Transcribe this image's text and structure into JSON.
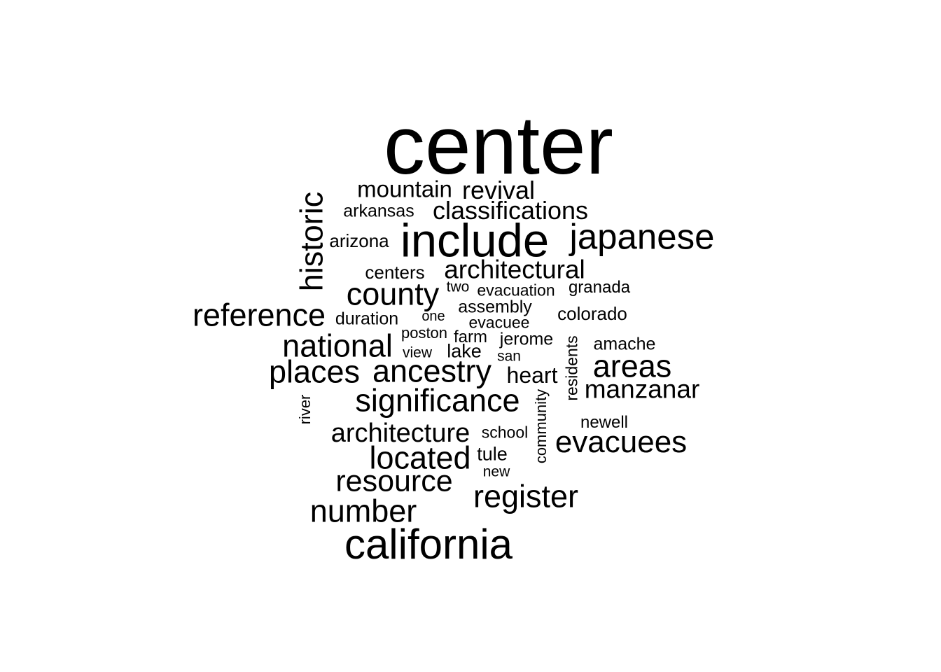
{
  "words": {
    "center": "center",
    "mountain": "mountain",
    "revival": "revival",
    "historic": "historic",
    "arkansas": "arkansas",
    "classifications": "classifications",
    "include": "include",
    "japanese": "japanese",
    "arizona": "arizona",
    "centers": "centers",
    "architectural": "architectural",
    "county": "county",
    "two": "two",
    "evacuation": "evacuation",
    "granada": "granada",
    "reference": "reference",
    "assembly": "assembly",
    "colorado": "colorado",
    "duration": "duration",
    "one": "one",
    "evacuee": "evacuee",
    "poston": "poston",
    "farm": "farm",
    "jerome": "jerome",
    "residents": "residents",
    "amache": "amache",
    "national": "national",
    "view": "view",
    "lake": "lake",
    "san": "san",
    "areas": "areas",
    "places": "places",
    "ancestry": "ancestry",
    "heart": "heart",
    "manzanar": "manzanar",
    "significance": "significance",
    "river": "river",
    "community": "community",
    "newell": "newell",
    "architecture": "architecture",
    "school": "school",
    "evacuees": "evacuees",
    "located": "located",
    "tule": "tule",
    "new": "new",
    "resource": "resource",
    "register": "register",
    "number": "number",
    "california": "california"
  }
}
